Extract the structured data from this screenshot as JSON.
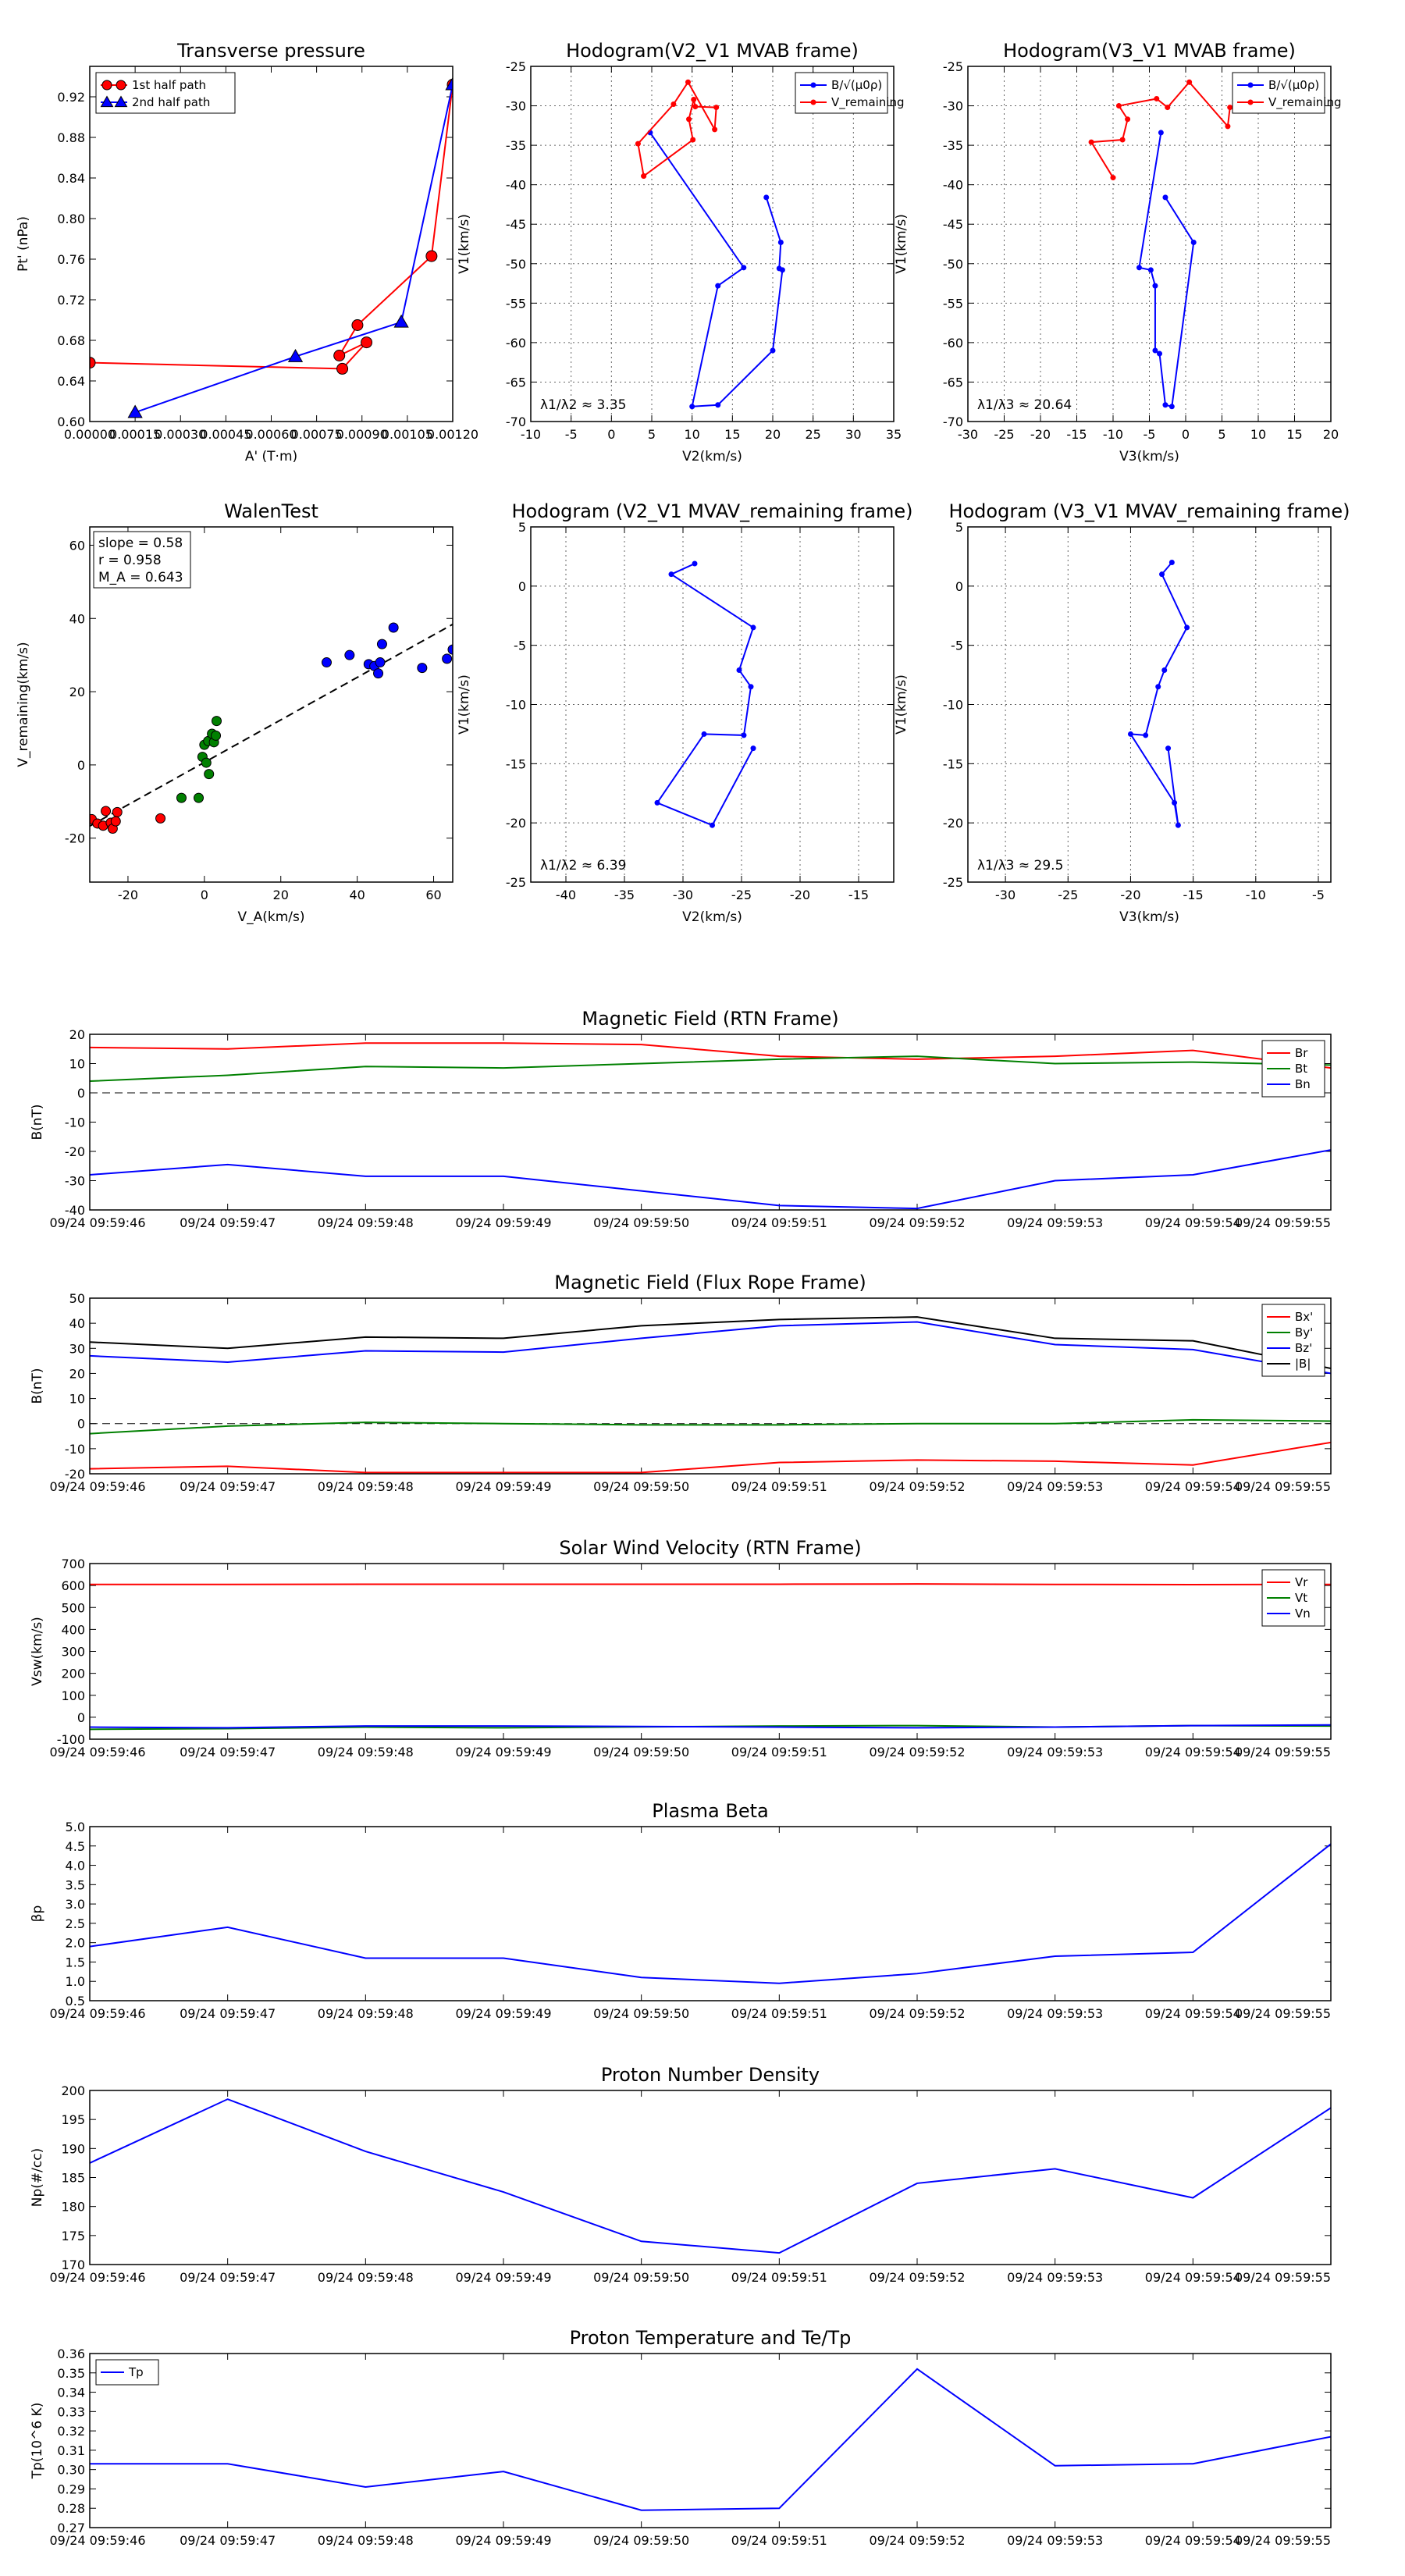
{
  "figure": "Flux rope event analysis panels",
  "chart_data": [
    {
      "id": "pt",
      "type": "line",
      "title": "Transverse pressure",
      "xlabel": "A' (T·m)",
      "ylabel": "Pt' (nPa)",
      "xlim": [
        0,
        0.0012
      ],
      "ylim": [
        0.6,
        0.95
      ],
      "xticks": [
        0,
        0.00015,
        0.0003,
        0.00045,
        0.0006,
        0.00075,
        0.0009,
        0.00105,
        0.0012
      ],
      "xtick_labels": [
        "0.00000",
        "0.00015",
        "0.00030",
        "0.00045",
        "0.00060",
        "0.00075",
        "0.00090",
        "0.00105",
        "0.00120"
      ],
      "yticks": [
        0.6,
        0.64,
        0.68,
        0.72,
        0.76,
        0.8,
        0.84,
        0.88,
        0.92
      ],
      "ytick_labels": [
        "0.60",
        "0.64",
        "0.68",
        "0.72",
        "0.76",
        "0.80",
        "0.84",
        "0.88",
        "0.92"
      ],
      "grid": false,
      "legend": "top-left",
      "series": [
        {
          "name": "1st half path",
          "color": "#ff0000",
          "marker": "circle",
          "x": [
            0.0012,
            0.00113,
            0.000885,
            0.000825,
            0.000915,
            0.000835,
            0.0
          ],
          "y": [
            0.932,
            0.763,
            0.695,
            0.665,
            0.678,
            0.652,
            0.658
          ]
        },
        {
          "name": "2nd half path",
          "color": "#0000ff",
          "marker": "triangle",
          "x": [
            0.00015,
            0.00068,
            0.00103,
            0.0012
          ],
          "y": [
            0.609,
            0.664,
            0.698,
            0.932
          ]
        }
      ]
    },
    {
      "id": "h1",
      "type": "line",
      "title": "Hodogram(V2_V1 MVAB frame)",
      "xlabel": "V2(km/s)",
      "ylabel": "V1(km/s)",
      "xlim": [
        -10,
        35
      ],
      "ylim": [
        -70,
        -25
      ],
      "xticks": [
        -10,
        -5,
        0,
        5,
        10,
        15,
        20,
        25,
        30,
        35
      ],
      "yticks": [
        -70,
        -65,
        -60,
        -55,
        -50,
        -45,
        -40,
        -35,
        -30,
        -25
      ],
      "grid": true,
      "legend": "top-right",
      "annotation": "λ1/λ2 ≈ 3.35",
      "series": [
        {
          "name": "B/√(μ0ρ)",
          "color": "#0000ff",
          "x": [
            4.8,
            16.4,
            13.2,
            10.0,
            13.2,
            20.0,
            21.2,
            20.8,
            21.0,
            19.2
          ],
          "y": [
            -33.4,
            -50.5,
            -52.8,
            -68.1,
            -67.9,
            -61.0,
            -50.8,
            -50.6,
            -47.3,
            -41.6
          ]
        },
        {
          "name": "V_remaining",
          "color": "#ff0000",
          "x": [
            4.0,
            10.1,
            9.6,
            10.2,
            10.4,
            13.0,
            12.8,
            9.5,
            7.7,
            3.3,
            4.0
          ],
          "y": [
            -38.9,
            -34.3,
            -31.7,
            -29.2,
            -30.1,
            -30.2,
            -33.0,
            -27.0,
            -29.8,
            -34.8,
            -38.9
          ]
        }
      ]
    },
    {
      "id": "h2",
      "type": "line",
      "title": "Hodogram(V3_V1 MVAB frame)",
      "xlabel": "V3(km/s)",
      "ylabel": "V1(km/s)",
      "xlim": [
        -30,
        20
      ],
      "ylim": [
        -70,
        -25
      ],
      "xticks": [
        -30,
        -25,
        -20,
        -15,
        -10,
        -5,
        0,
        5,
        10,
        15,
        20
      ],
      "yticks": [
        -70,
        -65,
        -60,
        -55,
        -50,
        -45,
        -40,
        -35,
        -30,
        -25
      ],
      "grid": true,
      "legend": "top-right",
      "annotation": "λ1/λ3 ≈ 20.64",
      "series": [
        {
          "name": "B/√(μ0ρ)",
          "color": "#0000ff",
          "x": [
            -3.4,
            -6.4,
            -4.8,
            -4.2,
            -4.2,
            -3.6,
            -2.8,
            -1.9,
            1.1,
            -2.8
          ],
          "y": [
            -33.4,
            -50.5,
            -50.8,
            -52.8,
            -61.0,
            -61.4,
            -67.9,
            -68.1,
            -47.3,
            -41.6
          ]
        },
        {
          "name": "V_remaining",
          "color": "#ff0000",
          "x": [
            -10.0,
            -13.0,
            -8.7,
            -8.0,
            -9.2,
            -4.0,
            -2.5,
            0.5,
            5.8,
            6.1
          ],
          "y": [
            -39.1,
            -34.6,
            -34.3,
            -31.7,
            -30.0,
            -29.1,
            -30.2,
            -27.0,
            -32.6,
            -30.2
          ]
        }
      ]
    },
    {
      "id": "walen",
      "type": "scatter",
      "title": "WalenTest",
      "xlabel": "V_A(km/s)",
      "ylabel": "V_remaining(km/s)",
      "xlim": [
        -30,
        65
      ],
      "ylim": [
        -32,
        65
      ],
      "xticks": [
        -20,
        0,
        20,
        40,
        60
      ],
      "yticks": [
        -20,
        0,
        20,
        40,
        60
      ],
      "grid": false,
      "stats": [
        "slope = 0.58",
        "r = 0.958",
        "M_A = 0.643"
      ],
      "fit_line": {
        "slope": 0.58,
        "intercept": 0.7
      },
      "series": [
        {
          "name": "red",
          "color": "#ff0000",
          "x": [
            -29.5,
            -28.0,
            -26.5,
            -25.8,
            -24.5,
            -24.0,
            -23.2,
            -22.8,
            -11.5
          ],
          "y": [
            -14.8,
            -16.0,
            -16.6,
            -12.6,
            -15.8,
            -17.4,
            -15.4,
            -12.9,
            -14.6
          ]
        },
        {
          "name": "green",
          "color": "#008000",
          "x": [
            -6.0,
            -1.5,
            0.0,
            -0.5,
            0.5,
            1.0,
            1.2,
            2.0,
            2.5,
            3.0,
            3.2
          ],
          "y": [
            -9.0,
            -9.0,
            5.5,
            2.2,
            0.6,
            6.5,
            -2.5,
            8.5,
            6.2,
            8.0,
            12.0
          ]
        },
        {
          "name": "blue",
          "color": "#0000ff",
          "x": [
            32.0,
            38.0,
            43.0,
            44.5,
            45.5,
            46.0,
            46.5,
            49.5,
            57.0,
            63.5,
            65.0
          ],
          "y": [
            28.0,
            30.0,
            27.5,
            27.0,
            25.0,
            28.0,
            33.0,
            37.5,
            26.5,
            29.0,
            31.5
          ]
        }
      ]
    },
    {
      "id": "h3",
      "type": "line",
      "title": "Hodogram (V2_V1 MVAV_remaining frame)",
      "xlabel": "V2(km/s)",
      "ylabel": "V1(km/s)",
      "xlim": [
        -43,
        -12
      ],
      "ylim": [
        -25,
        5
      ],
      "xticks": [
        -40,
        -35,
        -30,
        -25,
        -20,
        -15
      ],
      "yticks": [
        -25,
        -20,
        -15,
        -10,
        -5,
        0,
        5
      ],
      "grid": true,
      "annotation": "λ1/λ2 ≈ 6.39",
      "series": [
        {
          "name": "V",
          "color": "#0000ff",
          "x": [
            -29.0,
            -31.0,
            -24.0,
            -25.2,
            -24.2,
            -24.8,
            -28.2,
            -32.2,
            -27.5,
            -24.0
          ],
          "y": [
            1.9,
            1.0,
            -3.5,
            -7.1,
            -8.5,
            -12.6,
            -12.5,
            -18.3,
            -20.2,
            -13.7
          ]
        }
      ]
    },
    {
      "id": "h4",
      "type": "line",
      "title": "Hodogram (V3_V1 MVAV_remaining frame)",
      "xlabel": "V3(km/s)",
      "ylabel": "V1(km/s)",
      "xlim": [
        -33,
        -4
      ],
      "ylim": [
        -25,
        5
      ],
      "xticks": [
        -30,
        -25,
        -20,
        -15,
        -10,
        -5
      ],
      "yticks": [
        -25,
        -20,
        -15,
        -10,
        -5,
        0,
        5
      ],
      "grid": true,
      "annotation": "λ1/λ3 ≈ 29.5",
      "series": [
        {
          "name": "V",
          "color": "#0000ff",
          "x": [
            -16.7,
            -17.5,
            -15.5,
            -17.3,
            -17.8,
            -18.8,
            -20.0,
            -16.5,
            -16.2,
            -17.0
          ],
          "y": [
            2.0,
            1.0,
            -3.5,
            -7.1,
            -8.5,
            -12.6,
            -12.5,
            -18.3,
            -20.2,
            -13.7
          ]
        }
      ]
    },
    {
      "id": "brtn",
      "type": "line",
      "title": "Magnetic Field (RTN Frame)",
      "xlabel": "",
      "ylabel": "B(nT)",
      "ylim": [
        -40,
        20
      ],
      "yticks": [
        -40,
        -30,
        -20,
        -10,
        0,
        10,
        20
      ],
      "grid": false,
      "zero_line": true,
      "legend": "top-right",
      "series": [
        {
          "name": "Br",
          "color": "#ff0000",
          "values": [
            15.5,
            15.0,
            17.0,
            17.0,
            16.5,
            12.5,
            11.5,
            12.5,
            14.5,
            8.5
          ]
        },
        {
          "name": "Bt",
          "color": "#008000",
          "values": [
            4.0,
            6.0,
            9.0,
            8.5,
            10.0,
            11.5,
            12.5,
            10.0,
            10.5,
            9.5
          ]
        },
        {
          "name": "Bn",
          "color": "#0000ff",
          "values": [
            -28.0,
            -24.5,
            -28.5,
            -28.5,
            -33.5,
            -38.5,
            -39.5,
            -30.0,
            -28.0,
            -19.5
          ]
        }
      ]
    },
    {
      "id": "bfr",
      "type": "line",
      "title": "Magnetic Field (Flux Rope Frame)",
      "xlabel": "",
      "ylabel": "B(nT)",
      "ylim": [
        -20,
        50
      ],
      "yticks": [
        -20,
        -10,
        0,
        10,
        20,
        30,
        40,
        50
      ],
      "grid": false,
      "zero_line": true,
      "legend": "top-right",
      "series": [
        {
          "name": "Bx'",
          "color": "#ff0000",
          "values": [
            -18.0,
            -17.0,
            -19.5,
            -19.5,
            -19.5,
            -15.5,
            -14.5,
            -15.0,
            -16.5,
            -7.5
          ]
        },
        {
          "name": "By'",
          "color": "#008000",
          "values": [
            -4.0,
            -1.0,
            0.5,
            0.0,
            -0.5,
            -0.5,
            0.0,
            0.0,
            1.5,
            1.0
          ]
        },
        {
          "name": "Bz'",
          "color": "#0000ff",
          "values": [
            27.0,
            24.5,
            29.0,
            28.5,
            34.0,
            39.0,
            40.5,
            31.5,
            29.5,
            20.0
          ]
        },
        {
          "name": "|B|",
          "color": "#000000",
          "values": [
            32.5,
            30.0,
            34.5,
            34.0,
            39.0,
            41.5,
            42.5,
            34.0,
            33.0,
            22.0
          ]
        }
      ]
    },
    {
      "id": "vsw",
      "type": "line",
      "title": "Solar Wind Velocity (RTN Frame)",
      "xlabel": "",
      "ylabel": "Vsw(km/s)",
      "ylim": [
        -100,
        700
      ],
      "yticks": [
        -100,
        0,
        100,
        200,
        300,
        400,
        500,
        600,
        700
      ],
      "grid": false,
      "legend": "top-right",
      "series": [
        {
          "name": "Vr",
          "color": "#ff0000",
          "values": [
            605,
            605,
            606,
            606,
            606,
            606,
            607,
            605,
            604,
            605
          ]
        },
        {
          "name": "Vt",
          "color": "#008000",
          "values": [
            -55,
            -52,
            -45,
            -48,
            -44,
            -40,
            -38,
            -45,
            -38,
            -40
          ]
        },
        {
          "name": "Vn",
          "color": "#0000ff",
          "values": [
            -45,
            -48,
            -40,
            -40,
            -42,
            -45,
            -48,
            -45,
            -38,
            -35
          ]
        }
      ]
    },
    {
      "id": "beta",
      "type": "line",
      "title": "Plasma Beta",
      "xlabel": "",
      "ylabel": "βp",
      "ylim": [
        0.5,
        5.0
      ],
      "yticks": [
        0.5,
        1.0,
        1.5,
        2.0,
        2.5,
        3.0,
        3.5,
        4.0,
        4.5,
        5.0
      ],
      "ytick_labels": [
        "0.5",
        "1.0",
        "1.5",
        "2.0",
        "2.5",
        "3.0",
        "3.5",
        "4.0",
        "4.5",
        "5.0"
      ],
      "grid": false,
      "series": [
        {
          "name": "beta",
          "color": "#0000ff",
          "values": [
            1.9,
            2.4,
            1.6,
            1.6,
            1.1,
            0.95,
            1.2,
            1.65,
            1.75,
            4.55
          ]
        }
      ]
    },
    {
      "id": "np",
      "type": "line",
      "title": "Proton Number Density",
      "xlabel": "",
      "ylabel": "Np(#/cc)",
      "ylim": [
        170,
        200
      ],
      "yticks": [
        170,
        175,
        180,
        185,
        190,
        195,
        200
      ],
      "grid": false,
      "series": [
        {
          "name": "Np",
          "color": "#0000ff",
          "values": [
            187.5,
            198.5,
            189.5,
            182.5,
            174.0,
            172.0,
            184.0,
            186.5,
            181.5,
            197.0
          ]
        }
      ]
    },
    {
      "id": "tp",
      "type": "line",
      "title": "Proton Temperature and Te/Tp",
      "xlabel": "",
      "ylabel": "Tp(10^6 K)",
      "ylim": [
        0.27,
        0.36
      ],
      "yticks": [
        0.27,
        0.28,
        0.29,
        0.3,
        0.31,
        0.32,
        0.33,
        0.34,
        0.35,
        0.36
      ],
      "ytick_labels": [
        "0.27",
        "0.28",
        "0.29",
        "0.30",
        "0.31",
        "0.32",
        "0.33",
        "0.34",
        "0.35",
        "0.36"
      ],
      "grid": false,
      "legend": "top-left",
      "series": [
        {
          "name": "Tp",
          "color": "#0000ff",
          "values": [
            0.303,
            0.303,
            0.291,
            0.299,
            0.279,
            0.28,
            0.352,
            0.302,
            0.303,
            0.317
          ]
        }
      ]
    }
  ],
  "time_labels": [
    "09/24 09:59:46",
    "09/24 09:59:47",
    "09/24 09:59:48",
    "09/24 09:59:49",
    "09/24 09:59:50",
    "09/24 09:59:51",
    "09/24 09:59:52",
    "09/24 09:59:53",
    "09/24 09:59:54",
    "09/24 09:59:55"
  ]
}
